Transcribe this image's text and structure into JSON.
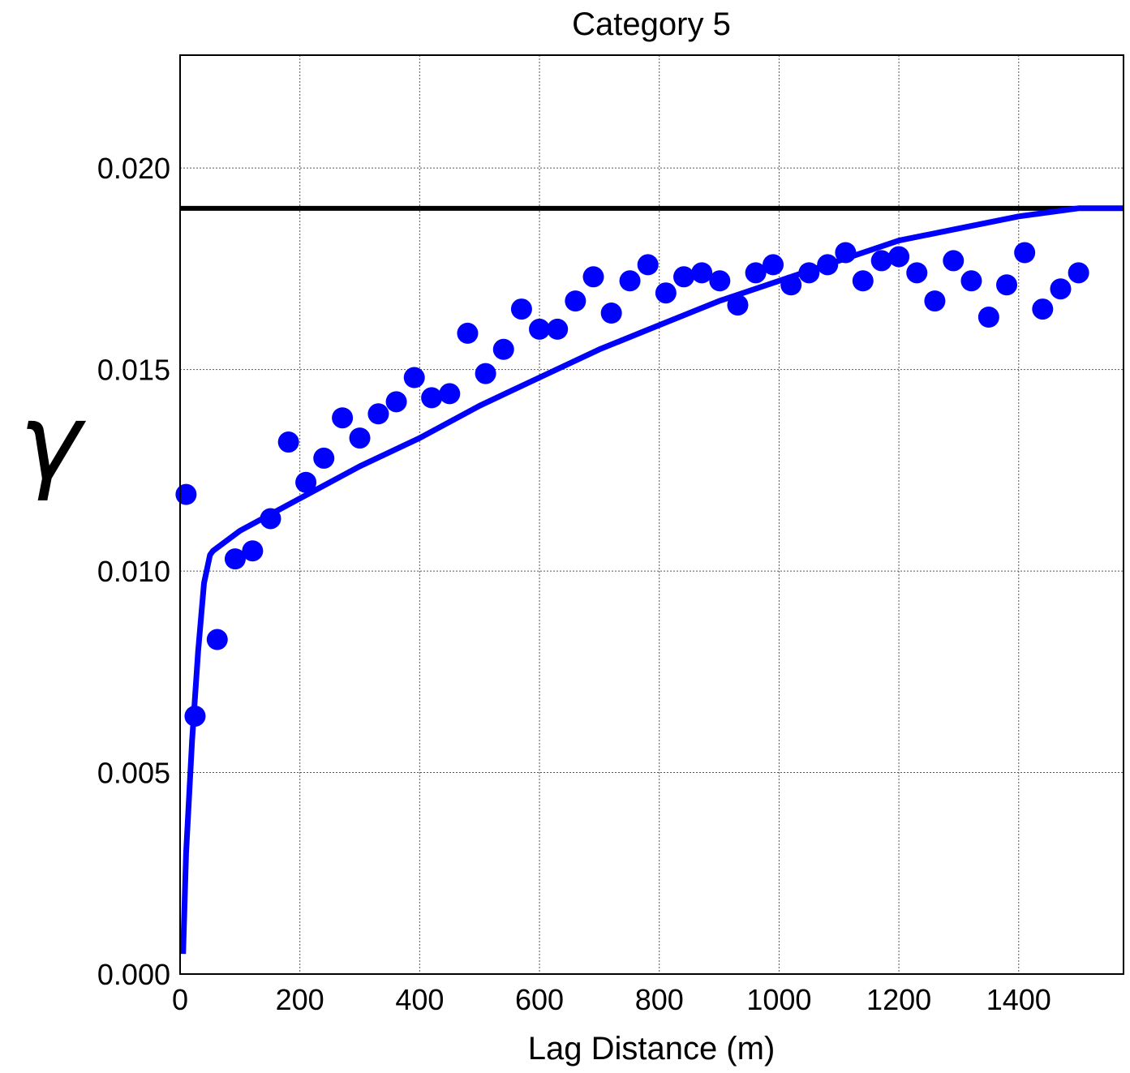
{
  "chart_data": {
    "type": "scatter",
    "title": "Category 5",
    "xlabel": "Lag Distance (m)",
    "ylabel": "γ",
    "xlim": [
      0,
      1575
    ],
    "ylim": [
      0,
      0.0228
    ],
    "x_ticks": [
      0,
      200,
      400,
      600,
      800,
      1000,
      1200,
      1400
    ],
    "x_tick_labels": [
      "0",
      "200",
      "400",
      "600",
      "800",
      "1000",
      "1200",
      "1400"
    ],
    "y_ticks": [
      0,
      0.005,
      0.01,
      0.015,
      0.02
    ],
    "y_tick_labels": [
      "0.000",
      "0.005",
      "0.010",
      "0.015",
      "0.020"
    ],
    "grid": true,
    "sill": 0.019,
    "colors": {
      "points": "#0000ff",
      "model": "#0000ff",
      "sill": "#000000"
    },
    "experimental": {
      "x": [
        10,
        25,
        62,
        92,
        121,
        151,
        181,
        210,
        240,
        271,
        300,
        331,
        361,
        391,
        420,
        450,
        480,
        510,
        540,
        570,
        600,
        630,
        660,
        690,
        720,
        751,
        781,
        811,
        841,
        871,
        901,
        931,
        961,
        990,
        1020,
        1050,
        1081,
        1111,
        1140,
        1171,
        1200,
        1230,
        1260,
        1291,
        1321,
        1350,
        1380,
        1410,
        1440,
        1470,
        1500
      ],
      "y": [
        0.0119,
        0.0064,
        0.0083,
        0.0103,
        0.0105,
        0.0113,
        0.0132,
        0.0122,
        0.0128,
        0.0138,
        0.0133,
        0.0139,
        0.0142,
        0.0148,
        0.0143,
        0.0144,
        0.0159,
        0.0149,
        0.0155,
        0.0165,
        0.016,
        0.016,
        0.0167,
        0.0173,
        0.0164,
        0.0172,
        0.0176,
        0.0169,
        0.0173,
        0.0174,
        0.0172,
        0.0166,
        0.0174,
        0.0176,
        0.0171,
        0.0174,
        0.0176,
        0.0179,
        0.0172,
        0.0177,
        0.0178,
        0.0174,
        0.0167,
        0.0177,
        0.0172,
        0.0163,
        0.0171,
        0.0179,
        0.0165,
        0.017,
        0.0174
      ]
    },
    "model": {
      "x": [
        5,
        10,
        20,
        30,
        40,
        50,
        55,
        100,
        200,
        300,
        400,
        500,
        600,
        700,
        800,
        900,
        1000,
        1100,
        1200,
        1300,
        1400,
        1500,
        1575
      ],
      "y": [
        0.0005,
        0.003,
        0.0058,
        0.008,
        0.0097,
        0.0104,
        0.0105,
        0.011,
        0.0118,
        0.0126,
        0.0133,
        0.0141,
        0.0148,
        0.0155,
        0.0161,
        0.0167,
        0.0172,
        0.0177,
        0.0182,
        0.0185,
        0.0188,
        0.019,
        0.019
      ]
    }
  }
}
